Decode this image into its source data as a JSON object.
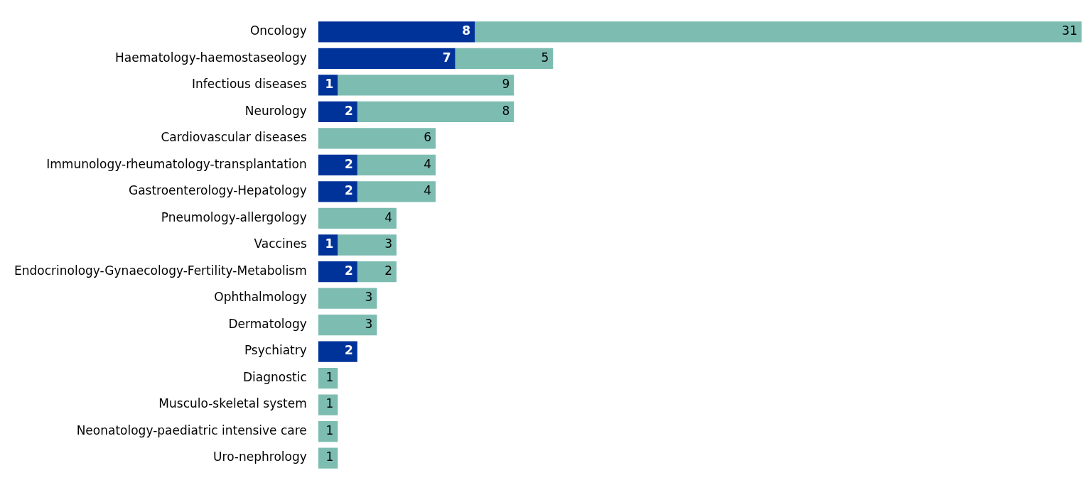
{
  "chart_data": {
    "type": "bar",
    "orientation": "horizontal",
    "stacked": true,
    "data_labels": true,
    "legend": false,
    "tick_labels": "y",
    "xlim": [
      0,
      39
    ],
    "categories": [
      "Oncology",
      "Haematology-haemostaseology",
      "Infectious diseases",
      "Neurology",
      "Cardiovascular diseases",
      "Immunology-rheumatology-transplantation",
      "Gastroenterology-Hepatology",
      "Pneumology-allergology",
      "Vaccines",
      "Endocrinology-Gynaecology-Fertility-Metabolism",
      "Ophthalmology",
      "Dermatology",
      "Psychiatry",
      "Diagnostic",
      "Musculo-skeletal system",
      "Neonatology-paediatric intensive care",
      "Uro-nephrology"
    ],
    "series": [
      {
        "color": "#003399",
        "values": [
          8,
          7,
          1,
          2,
          null,
          2,
          2,
          null,
          1,
          2,
          null,
          null,
          2,
          null,
          null,
          null,
          null
        ]
      },
      {
        "color": "#7dbcb1",
        "values": [
          31,
          5,
          9,
          8,
          6,
          4,
          4,
          4,
          3,
          2,
          3,
          3,
          null,
          1,
          1,
          1,
          1
        ]
      }
    ]
  }
}
